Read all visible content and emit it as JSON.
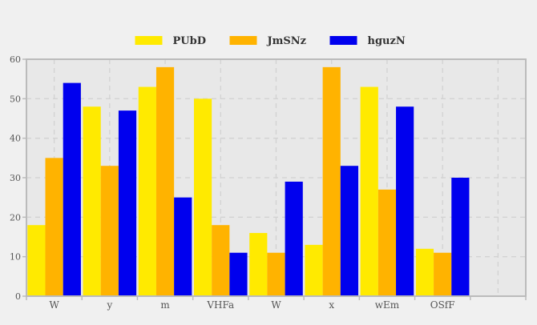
{
  "chart_data": {
    "type": "bar",
    "categories": [
      "W",
      "y",
      "m",
      "VHFa",
      "W",
      "x",
      "wEm",
      "OSfF",
      ""
    ],
    "series": [
      {
        "name": "PUbD",
        "color": "#ffea00",
        "values": [
          18,
          48,
          53,
          50,
          16,
          13,
          53,
          12,
          null
        ]
      },
      {
        "name": "JmSNz",
        "color": "#ffb300",
        "values": [
          35,
          33,
          58,
          18,
          11,
          58,
          27,
          11,
          null
        ]
      },
      {
        "name": "hguzN",
        "color": "#0000ee",
        "values": [
          54,
          47,
          25,
          11,
          29,
          33,
          48,
          30,
          null
        ]
      }
    ],
    "title": "",
    "xlabel": "",
    "ylabel": "",
    "ylim": [
      0,
      60
    ],
    "yticks": [
      0,
      10,
      20,
      30,
      40,
      50,
      60
    ],
    "grid": true,
    "legend_position": "top-center",
    "colors": {
      "plot_background": "#e8e8e8",
      "page_background": "#f0f0f0",
      "axis": "#bbbbbb",
      "grid": "#d2d2d2"
    }
  }
}
